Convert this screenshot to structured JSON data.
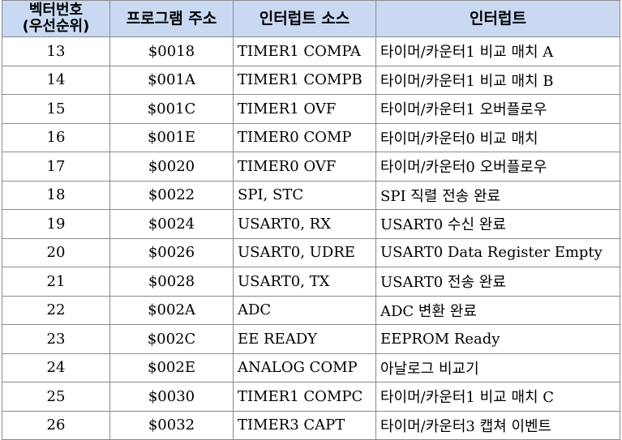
{
  "table": {
    "headers": [
      [
        "벡터번호",
        "(우선순위)"
      ],
      [
        "프로그램 주소"
      ],
      [
        "인터럽트 소스"
      ],
      [
        "인터럽트"
      ]
    ],
    "rows": [
      [
        "13",
        "$0018",
        "TIMER1 COMPA",
        "타이머/카운터1 비교 매치 A"
      ],
      [
        "14",
        "$001A",
        "TIMER1 COMPB",
        "타이머/카운터1 비교 매치 B"
      ],
      [
        "15",
        "$001C",
        "TIMER1 OVF",
        "타이머/카운터1 오버플로우"
      ],
      [
        "16",
        "$001E",
        "TIMER0 COMP",
        "타이머/카운터0 비교 매치"
      ],
      [
        "17",
        "$0020",
        "TIMER0 OVF",
        "타이머/카운터0 오버플로우"
      ],
      [
        "18",
        "$0022",
        "SPI, STC",
        "SPI 직렬 전송 완료"
      ],
      [
        "19",
        "$0024",
        "USART0, RX",
        "USART0 수신 완료"
      ],
      [
        "20",
        "$0026",
        "USART0, UDRE",
        "USART0 Data Register Empty"
      ],
      [
        "21",
        "$0028",
        "USART0, TX",
        "USART0 전송 완료"
      ],
      [
        "22",
        "$002A",
        "ADC",
        "ADC 변환 완료"
      ],
      [
        "23",
        "$002C",
        "EE READY",
        "EEPROM Ready"
      ],
      [
        "24",
        "$002E",
        "ANALOG COMP",
        "아날로그 비교기"
      ],
      [
        "25",
        "$0030",
        "TIMER1 COMPC",
        "타이머/카운터1 비교 매치 C"
      ],
      [
        "26",
        "$0032",
        "TIMER3 CAPT",
        "타이머/카운터3 캡쳐 이벤트"
      ]
    ]
  },
  "colors": {
    "header_bg": "#c9d9f2",
    "border": "#8a8a8a",
    "text": "#000000"
  }
}
